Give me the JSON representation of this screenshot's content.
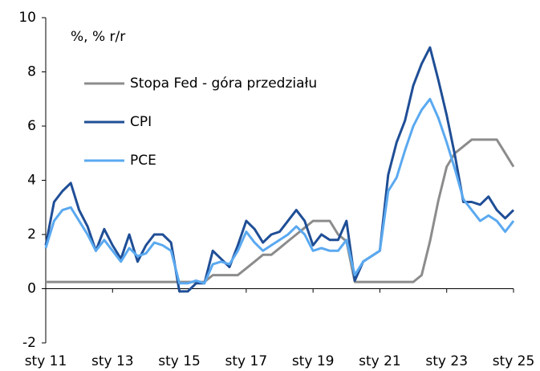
{
  "chart_data": {
    "type": "line",
    "ylabel": "%, % r/r",
    "x": [
      2011,
      2011.25,
      2011.5,
      2011.75,
      2012,
      2012.25,
      2012.5,
      2012.75,
      2013,
      2013.25,
      2013.5,
      2013.75,
      2014,
      2014.25,
      2014.5,
      2014.75,
      2015,
      2015.25,
      2015.5,
      2015.75,
      2016,
      2016.25,
      2016.5,
      2016.75,
      2017,
      2017.25,
      2017.5,
      2017.75,
      2018,
      2018.25,
      2018.5,
      2018.75,
      2019,
      2019.25,
      2019.5,
      2019.75,
      2020,
      2020.25,
      2020.5,
      2020.75,
      2021,
      2021.25,
      2021.5,
      2021.75,
      2022,
      2022.25,
      2022.5,
      2022.75,
      2023,
      2023.25,
      2023.5,
      2023.75,
      2024,
      2024.25,
      2024.5,
      2024.75,
      2025
    ],
    "series": [
      {
        "name": "Stopa Fed - góra przedziału",
        "color": "#8c8c8c",
        "values": [
          0.25,
          0.25,
          0.25,
          0.25,
          0.25,
          0.25,
          0.25,
          0.25,
          0.25,
          0.25,
          0.25,
          0.25,
          0.25,
          0.25,
          0.25,
          0.25,
          0.25,
          0.25,
          0.25,
          0.25,
          0.5,
          0.5,
          0.5,
          0.5,
          0.75,
          1.0,
          1.25,
          1.25,
          1.5,
          1.75,
          2.0,
          2.25,
          2.5,
          2.5,
          2.5,
          2.0,
          1.75,
          0.25,
          0.25,
          0.25,
          0.25,
          0.25,
          0.25,
          0.25,
          0.25,
          0.5,
          1.75,
          3.25,
          4.5,
          5.0,
          5.25,
          5.5,
          5.5,
          5.5,
          5.5,
          5.0,
          4.5
        ]
      },
      {
        "name": "CPI",
        "color": "#1f4e96",
        "values": [
          1.6,
          3.2,
          3.6,
          3.9,
          2.9,
          2.3,
          1.4,
          2.2,
          1.6,
          1.1,
          2.0,
          1.0,
          1.6,
          2.0,
          2.0,
          1.7,
          -0.1,
          -0.1,
          0.2,
          0.2,
          1.4,
          1.1,
          0.8,
          1.6,
          2.5,
          2.2,
          1.7,
          2.0,
          2.1,
          2.5,
          2.9,
          2.5,
          1.6,
          2.0,
          1.8,
          1.8,
          2.5,
          0.3,
          1.0,
          1.2,
          1.4,
          4.2,
          5.4,
          6.2,
          7.5,
          8.3,
          8.9,
          7.7,
          6.4,
          4.9,
          3.2,
          3.2,
          3.1,
          3.4,
          2.9,
          2.6,
          2.9
        ]
      },
      {
        "name": "PCE",
        "color": "#5aa9f0",
        "values": [
          1.5,
          2.5,
          2.9,
          3.0,
          2.5,
          2.0,
          1.4,
          1.8,
          1.4,
          1.0,
          1.5,
          1.2,
          1.3,
          1.7,
          1.6,
          1.4,
          0.2,
          0.2,
          0.3,
          0.2,
          0.9,
          1.0,
          0.9,
          1.4,
          2.1,
          1.7,
          1.4,
          1.6,
          1.8,
          2.0,
          2.3,
          2.0,
          1.4,
          1.5,
          1.4,
          1.4,
          1.8,
          0.5,
          1.0,
          1.2,
          1.4,
          3.6,
          4.1,
          5.1,
          6.0,
          6.6,
          7.0,
          6.3,
          5.4,
          4.4,
          3.3,
          2.9,
          2.5,
          2.7,
          2.5,
          2.1,
          2.5
        ]
      }
    ],
    "xlim": [
      2011,
      2025
    ],
    "xticks": [
      {
        "value": 2011,
        "label": "sty 11"
      },
      {
        "value": 2013,
        "label": "sty 13"
      },
      {
        "value": 2015,
        "label": "sty 15"
      },
      {
        "value": 2017,
        "label": "sty 17"
      },
      {
        "value": 2019,
        "label": "sty 19"
      },
      {
        "value": 2021,
        "label": "sty 21"
      },
      {
        "value": 2023,
        "label": "sty 23"
      },
      {
        "value": 2025,
        "label": "sty 25"
      }
    ],
    "ylim": [
      -2,
      10
    ],
    "yticks": [
      -2,
      0,
      2,
      4,
      6,
      8,
      10
    ],
    "grid": false
  }
}
